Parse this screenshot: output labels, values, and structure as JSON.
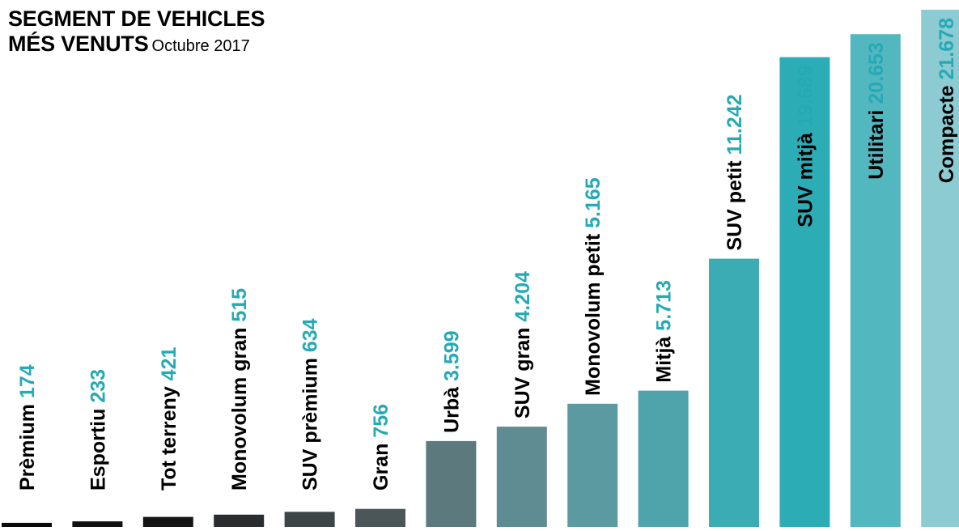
{
  "title": {
    "line1": "SEGMENT DE VEHICLES",
    "line2": "MÉS VENUTS",
    "subtitle": "Octubre 2017"
  },
  "chart_data": {
    "type": "bar",
    "title": "SEGMENT DE VEHICLES MÉS VENUTS",
    "subtitle": "Octubre 2017",
    "categories": [
      "Prèmium",
      "Esportiu",
      "Tot terreny",
      "Monovolum gran",
      "SUV prèmium",
      "Gran",
      "Urbà",
      "SUV gran",
      "Monovolum petit",
      "Mitjà",
      "SUV petit",
      "SUV mitjà",
      "Utilitari",
      "Compacte"
    ],
    "values": [
      174,
      233,
      421,
      515,
      634,
      756,
      3599,
      4204,
      5165,
      5713,
      11242,
      19689,
      20653,
      21678
    ],
    "value_labels": [
      "174",
      "233",
      "421",
      "515",
      "634",
      "756",
      "3.599",
      "4.204",
      "5.165",
      "5.713",
      "11.242",
      "19.689",
      "20.653",
      "21.678"
    ],
    "xlabel": "",
    "ylabel": "",
    "grid": false,
    "legend": "none",
    "colors": {
      "bars": [
        "#0a0a0a",
        "#101010",
        "#141414",
        "#2a2c2d",
        "#3e4546",
        "#4b5658",
        "#5c7a7e",
        "#5e8c92",
        "#5c9aa1",
        "#4fa4ac",
        "#3cacb4",
        "#2cadb6",
        "#53b7bf",
        "#8ccbd2"
      ],
      "label_dark": "#000000",
      "value_teal": "#25aab5"
    }
  }
}
